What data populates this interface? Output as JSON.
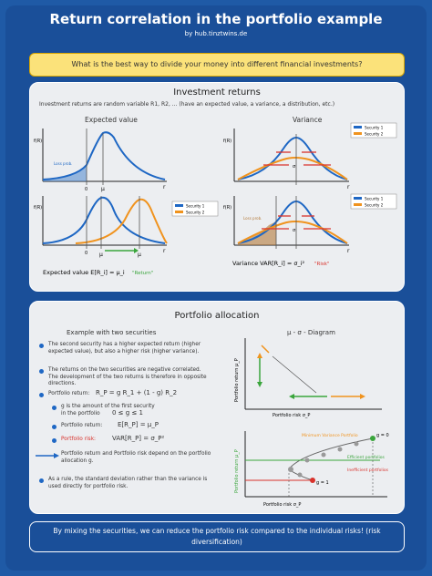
{
  "header": {
    "title": "Return correlation in the portfolio example",
    "subtitle": "by hub.tinztwins.de"
  },
  "question": "What is the best way to divide your money into different financial investments?",
  "investment": {
    "title": "Investment returns",
    "intro": "Investment returns are random variable R1, R2, ... (have an expected value, a variance, a distribution, etc.)",
    "expected_title": "Expected value",
    "variance_title": "Variance",
    "fr_label": "f(R)",
    "r_label": "r",
    "mu_label": "μ",
    "zero_label": "0",
    "sigma_label": "σ",
    "loss_label": "Loss prob.",
    "security1": "Security 1",
    "security2": "Security 2",
    "expected_formula": "Expected value E[R_i] = μ_i",
    "expected_note": "\"Return\"",
    "variance_formula": "Variance VAR[R_i] = σ_i²",
    "variance_note": "\"Risk\""
  },
  "allocation": {
    "title": "Portfolio allocation",
    "example_title": "Example with two securities",
    "diagram_title": "μ - σ - Diagram",
    "bullets": [
      "The second security has a higher expected return (higher expected value), but also a higher risk (higher variance).",
      "The returns on the two securities are negative correlated. The development of the two returns is therefore in opposite directions."
    ],
    "return_label": "Portfolio return:",
    "return_formula": "R_P = g R_1 + (1 - g) R_2",
    "g_note_1": "g is the amount of the first security",
    "g_note_2": "in the portfolio",
    "g_range": "0 ≤ g ≤ 1",
    "portfolio_return_label": "Portfolio return:",
    "portfolio_return_formula": "E[R_P] = μ_P",
    "portfolio_risk_label": "Portfolio risk:",
    "portfolio_risk_formula": "VAR[R_P] = σ_P²",
    "arrow_note": "Portfolio return and Portfolio risk depend on the portfolio allocation g.",
    "std_note": "As a rule, the standard deviation rather than the variance is used directly for portfolio risk.",
    "axis_y": "Portfolio return μ_P",
    "axis_x": "Portfolio risk σ_P",
    "min_var": "Minimum Variance Portfolio",
    "efficient": "Efficient portfolios",
    "inefficient": "Inefficient portfolios",
    "g0": "g = 0",
    "g1": "g = 1"
  },
  "footer": "By mixing the securities, we can reduce the portfolio risk compared to the individual risks! (risk diversification)",
  "colors": {
    "blue": "#1e67c4",
    "orange": "#f0931e",
    "red": "#d8322c",
    "green": "#3aa53c",
    "yellow": "#fbe27a"
  }
}
